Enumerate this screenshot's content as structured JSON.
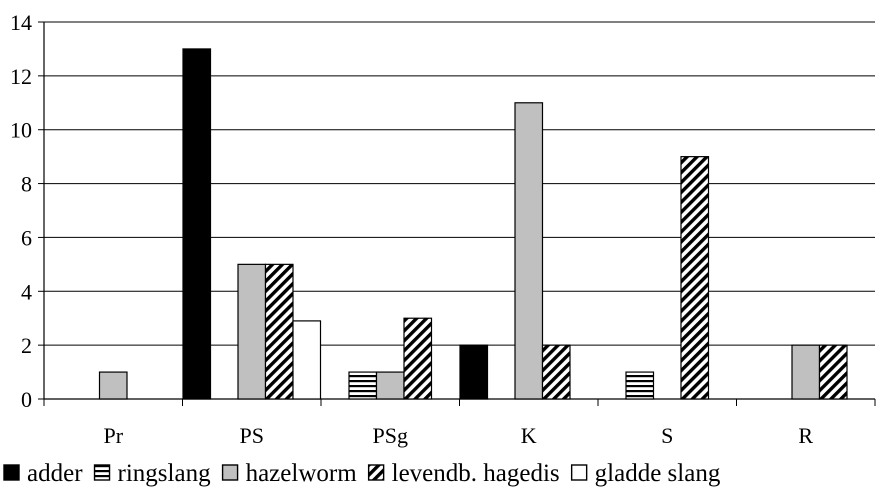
{
  "chart_data": {
    "type": "bar",
    "title": "",
    "xlabel": "",
    "ylabel": "",
    "categories": [
      "Pr",
      "PS",
      "PSg",
      "K",
      "S",
      "R"
    ],
    "ylim": [
      0,
      14
    ],
    "yticks": [
      0,
      2,
      4,
      6,
      8,
      10,
      12,
      14
    ],
    "grid": true,
    "legend_position": "bottom",
    "series": [
      {
        "name": "adder",
        "pattern": "solid-black",
        "values": [
          0,
          13,
          0,
          2,
          0,
          0
        ]
      },
      {
        "name": "ringslang",
        "pattern": "horizontal-lines",
        "values": [
          0,
          0,
          1,
          0,
          1,
          0
        ]
      },
      {
        "name": "hazelworm",
        "pattern": "solid-gray",
        "values": [
          1,
          5,
          1,
          11,
          0,
          2
        ]
      },
      {
        "name": "levendb. hagedis",
        "pattern": "diagonal-lines",
        "values": [
          0,
          5,
          3,
          2,
          9,
          2
        ]
      },
      {
        "name": "gladde slang",
        "pattern": "solid-white",
        "values": [
          0,
          2.9,
          0,
          0,
          0,
          0
        ]
      }
    ]
  },
  "colors": {
    "adder": "#000000",
    "hazelworm": "#c0c0c0",
    "gladde_slang": "#ffffff",
    "axis": "#000000"
  }
}
